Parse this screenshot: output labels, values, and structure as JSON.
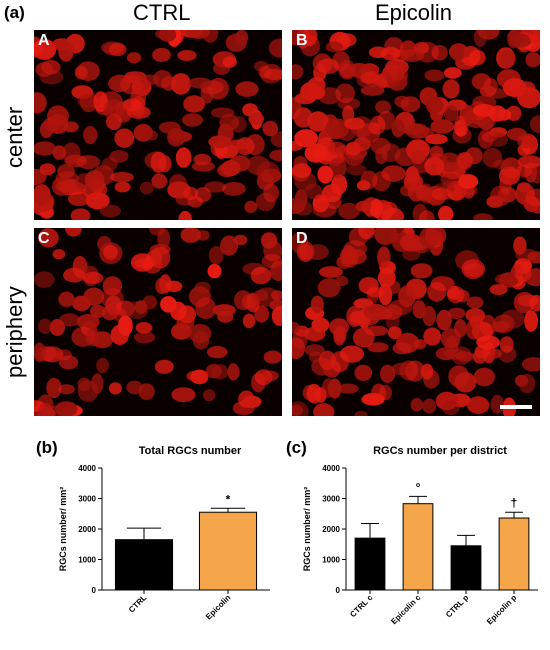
{
  "figure": {
    "panel_a_label": "(a)",
    "panel_b_label": "(b)",
    "panel_c_label": "(c)",
    "col_ctrl": "CTRL",
    "col_epicolin": "Epicolin",
    "row_center": "center",
    "row_periphery": "periphery",
    "sub_labels": [
      "A",
      "B",
      "C",
      "D"
    ]
  },
  "colors": {
    "ctrl_bar": "#000000",
    "epicolin_bar": "#f5a54a",
    "cell_red": "#d41a12",
    "tissue_bg": "#0a0000"
  },
  "chart_data": [
    {
      "type": "bar",
      "title": "Total RGCs number",
      "ylabel": "RGCs number/ mm²",
      "ylim": [
        0,
        4000
      ],
      "yticks": [
        "0",
        "1000",
        "2000",
        "3000",
        "4000"
      ],
      "categories": [
        "CTRL",
        "Epicolin"
      ],
      "values": [
        1650,
        2550
      ],
      "errors": [
        380,
        130
      ],
      "annotations": [
        "",
        "*"
      ]
    },
    {
      "type": "bar",
      "title": "RGCs number per district",
      "ylabel": "RGCs number/ mm²",
      "ylim": [
        0,
        4000
      ],
      "yticks": [
        "0",
        "1000",
        "2000",
        "3000",
        "4000"
      ],
      "categories": [
        "CTRL c",
        "Epicolin c",
        "CTRL p",
        "Epicolin p"
      ],
      "values": [
        1700,
        2830,
        1450,
        2360
      ],
      "errors": [
        480,
        240,
        340,
        190
      ],
      "annotations": [
        "",
        "°",
        "",
        "†"
      ]
    }
  ]
}
